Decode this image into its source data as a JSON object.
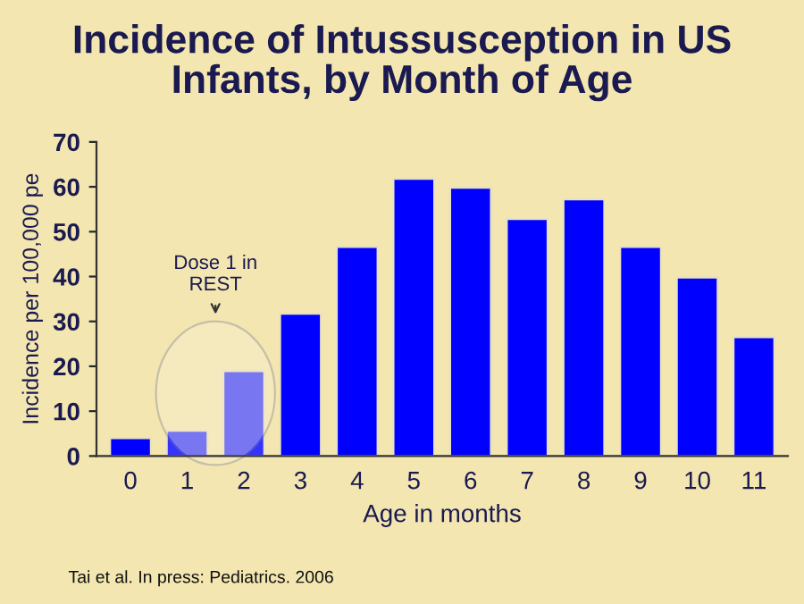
{
  "chart_data": {
    "type": "bar",
    "title": "Incidence of Intussusception in US\nInfants, by Month of Age",
    "xlabel": "Age in months",
    "ylabel": "Incidence per 100,000 pe",
    "categories": [
      "0",
      "1",
      "2",
      "3",
      "4",
      "5",
      "6",
      "7",
      "8",
      "9",
      "10",
      "11"
    ],
    "values": [
      4.0,
      5.6,
      18.9,
      31.7,
      46.6,
      61.8,
      59.8,
      52.8,
      57.2,
      46.6,
      39.8,
      26.5
    ],
    "colors": [
      "#0000ff",
      "#3333ff",
      "#3333ff",
      "#0000ff",
      "#0000ff",
      "#0000ff",
      "#0000ff",
      "#0000ff",
      "#0000ff",
      "#0000ff",
      "#0000ff",
      "#0000ff"
    ],
    "ylim": [
      0,
      70
    ],
    "yticks": [
      0,
      10,
      20,
      30,
      40,
      50,
      60,
      70
    ],
    "grid": false,
    "legend": false,
    "annotations": [
      "Dose 1 in\nREST",
      "Tai et al. In press: Pediatrics. 2006"
    ]
  }
}
